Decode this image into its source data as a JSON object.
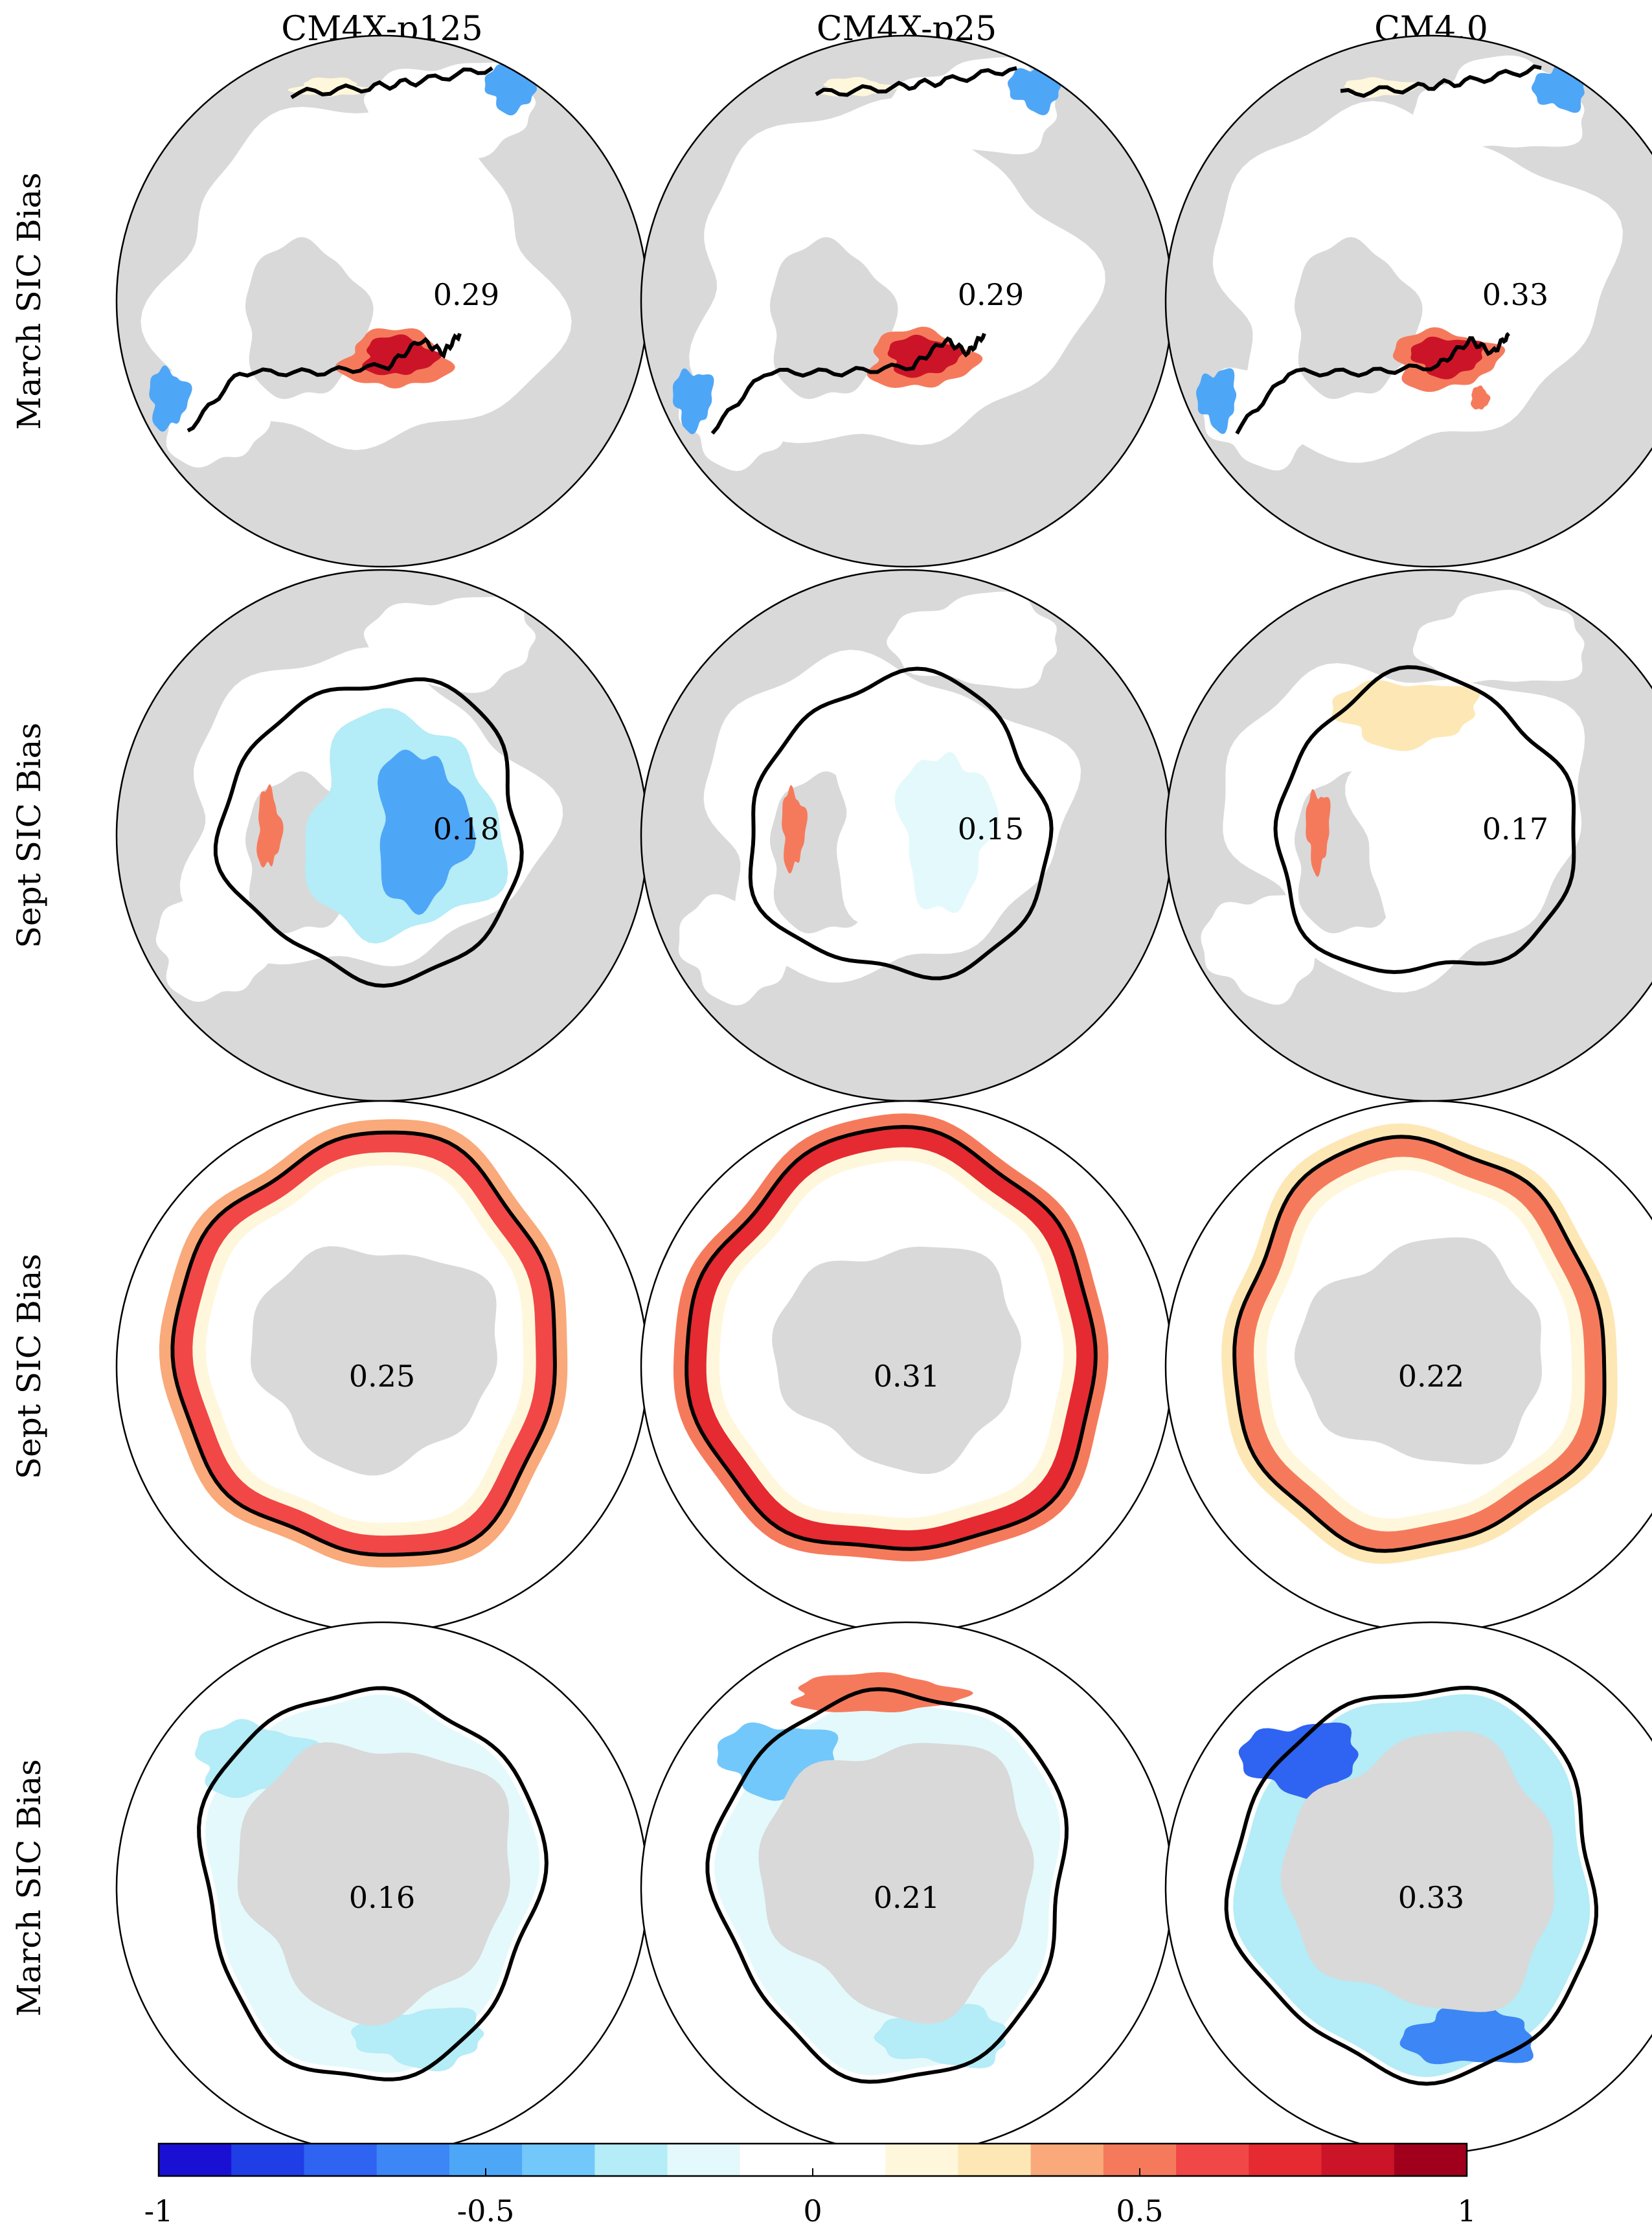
{
  "chart_data": {
    "type": "heatmap",
    "title": "",
    "column_titles": [
      "CM4X-p125",
      "CM4X-p25",
      "CM4.0"
    ],
    "row_labels": [
      "March SIC Bias",
      "Sept SIC Bias",
      "Sept SIC Bias",
      "March SIC Bias"
    ],
    "row_hemispheres": [
      "north",
      "north",
      "south",
      "south"
    ],
    "panel_values": [
      [
        "0.29",
        "0.29",
        "0.33"
      ],
      [
        "0.18",
        "0.15",
        "0.17"
      ],
      [
        "0.25",
        "0.31",
        "0.22"
      ],
      [
        "0.16",
        "0.21",
        "0.33"
      ]
    ],
    "colorbar": {
      "range": [
        -1,
        1
      ],
      "ticks": [
        -1,
        -0.5,
        0,
        0.5,
        1
      ],
      "tick_labels": [
        "-1",
        "-0.5",
        "0",
        "0.5",
        "1"
      ],
      "colors": [
        "#1a10d4",
        "#1f3ee6",
        "#2f63f2",
        "#3d86f5",
        "#4ea6f7",
        "#72c8fa",
        "#b4ecf7",
        "#e4f9fb",
        "#ffffff",
        "#ffffff",
        "#fff7dc",
        "#fde7b4",
        "#f9a97a",
        "#f57a5c",
        "#f14747",
        "#e52a31",
        "#cc1428",
        "#a0001c"
      ]
    },
    "land_color": "#d9d9d9",
    "ice_edge_color": "#000000"
  }
}
